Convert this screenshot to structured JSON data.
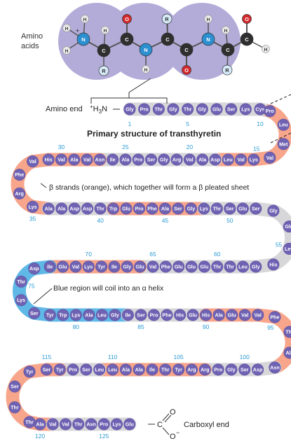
{
  "amino_acids_label": [
    "Amino",
    "acids"
  ],
  "amino_end_label": "Amino end",
  "amino_end_group": "+H3N",
  "title": "Primary structure of transthyretin",
  "beta_note": "β strands (orange), which together will form a β pleated sheet",
  "helix_note": "Blue region will coil into an α helix",
  "carboxyl_end_label": "Carboxyl end",
  "carboxyl_group": {
    "carbon": "C",
    "oxygen_top": "O",
    "oxygen_bottom": "O"
  },
  "molecule_atoms": {
    "backbone": [
      "N",
      "C",
      "C",
      "N",
      "C",
      "C",
      "N",
      "C",
      "C"
    ],
    "oxygens": [
      "O",
      "O",
      "O"
    ],
    "hydrogens": [
      "H",
      "H",
      "H",
      "H",
      "H",
      "H",
      "H",
      "H",
      "H"
    ],
    "side_chains": [
      "R",
      "R",
      "R"
    ],
    "charge": "+"
  },
  "colors": {
    "bead": "#6f62b3",
    "bead_edge": "#5a4fa0",
    "beta_strand": "#f7a58b",
    "helix": "#5fb8e6",
    "chain_gray": "#d7d7d9",
    "number": "#2b9bd3",
    "molecule_bg": "#b3acd9",
    "carbon": "#2f2f2f",
    "nitrogen": "#2c8fd0",
    "oxygen": "#d3282b",
    "hydrogen": "#ebebeb",
    "side_chain": "#d6eaf8"
  },
  "rows": [
    {
      "numbers": [
        1,
        5,
        10
      ],
      "residues": [
        {
          "n": 1,
          "aa": "Gly",
          "band": "gray"
        },
        {
          "n": 2,
          "aa": "Pro",
          "band": "gray"
        },
        {
          "n": 3,
          "aa": "Thr",
          "band": "gray"
        },
        {
          "n": 4,
          "aa": "Gly",
          "band": "gray"
        },
        {
          "n": 5,
          "aa": "Thr",
          "band": "gray"
        },
        {
          "n": 6,
          "aa": "Gly",
          "band": "gray"
        },
        {
          "n": 7,
          "aa": "Glu",
          "band": "gray"
        },
        {
          "n": 8,
          "aa": "Ser",
          "band": "gray"
        },
        {
          "n": 9,
          "aa": "Lys",
          "band": "gray"
        },
        {
          "n": 10,
          "aa": "Cys",
          "band": "gray"
        }
      ]
    },
    {
      "numbers": [
        15
      ],
      "residues": [
        {
          "n": 11,
          "aa": "Pro",
          "band": "gray"
        },
        {
          "n": 12,
          "aa": "Leu",
          "band": "beta"
        },
        {
          "n": 13,
          "aa": "Met",
          "band": "beta"
        },
        {
          "n": 14,
          "aa": "Val",
          "band": "beta"
        }
      ]
    },
    {
      "numbers": [
        20,
        25,
        30
      ],
      "residues": [
        {
          "n": 15,
          "aa": "Lys",
          "band": "beta"
        },
        {
          "n": 16,
          "aa": "Val",
          "band": "beta"
        },
        {
          "n": 17,
          "aa": "Leu",
          "band": "beta"
        },
        {
          "n": 18,
          "aa": "Asp",
          "band": "beta"
        },
        {
          "n": 19,
          "aa": "Ala",
          "band": "gray"
        },
        {
          "n": 20,
          "aa": "Val",
          "band": "gray"
        },
        {
          "n": 21,
          "aa": "Arg",
          "band": "gray"
        },
        {
          "n": 22,
          "aa": "Gly",
          "band": "gray"
        },
        {
          "n": 23,
          "aa": "Ser",
          "band": "gray"
        },
        {
          "n": 24,
          "aa": "Pro",
          "band": "gray"
        },
        {
          "n": 25,
          "aa": "Ala",
          "band": "gray"
        },
        {
          "n": 26,
          "aa": "Ile",
          "band": "gray"
        },
        {
          "n": 27,
          "aa": "Asn",
          "band": "gray"
        },
        {
          "n": 28,
          "aa": "Val",
          "band": "beta"
        },
        {
          "n": 29,
          "aa": "Ala",
          "band": "beta"
        },
        {
          "n": 30,
          "aa": "Val",
          "band": "beta"
        },
        {
          "n": 31,
          "aa": "His",
          "band": "beta"
        }
      ]
    },
    {
      "numbers": [],
      "residues": [
        {
          "n": 32,
          "aa": "Val",
          "band": "beta"
        },
        {
          "n": 33,
          "aa": "Phe",
          "band": "beta"
        },
        {
          "n": 34,
          "aa": "Arg",
          "band": "beta"
        },
        {
          "n": 35,
          "aa": "Lys",
          "band": "beta"
        }
      ]
    },
    {
      "numbers": [
        35,
        40,
        45,
        50
      ],
      "residues": [
        {
          "n": 36,
          "aa": "Ala",
          "band": "beta"
        },
        {
          "n": 37,
          "aa": "Ala",
          "band": "gray"
        },
        {
          "n": 38,
          "aa": "Asp",
          "band": "gray"
        },
        {
          "n": 39,
          "aa": "Asp",
          "band": "gray"
        },
        {
          "n": 40,
          "aa": "Thr",
          "band": "gray"
        },
        {
          "n": 41,
          "aa": "Trp",
          "band": "gray"
        },
        {
          "n": 42,
          "aa": "Glu",
          "band": "beta"
        },
        {
          "n": 43,
          "aa": "Pro",
          "band": "beta"
        },
        {
          "n": 44,
          "aa": "Phe",
          "band": "beta"
        },
        {
          "n": 45,
          "aa": "Ala",
          "band": "beta"
        },
        {
          "n": 46,
          "aa": "Ser",
          "band": "beta"
        },
        {
          "n": 47,
          "aa": "Gly",
          "band": "beta"
        },
        {
          "n": 48,
          "aa": "Lys",
          "band": "beta"
        },
        {
          "n": 49,
          "aa": "Thr",
          "band": "gray"
        },
        {
          "n": 50,
          "aa": "Ser",
          "band": "gray"
        },
        {
          "n": 51,
          "aa": "Glu",
          "band": "gray"
        },
        {
          "n": 52,
          "aa": "Ser",
          "band": "gray"
        }
      ]
    },
    {
      "numbers": [
        55
      ],
      "residues": [
        {
          "n": 53,
          "aa": "Gly",
          "band": "gray"
        },
        {
          "n": 54,
          "aa": "Glu",
          "band": "gray"
        },
        {
          "n": 55,
          "aa": "Leu",
          "band": "gray"
        },
        {
          "n": 56,
          "aa": "His",
          "band": "gray"
        }
      ]
    },
    {
      "numbers": [
        60,
        65,
        70
      ],
      "residues": [
        {
          "n": 57,
          "aa": "Gly",
          "band": "gray"
        },
        {
          "n": 58,
          "aa": "Leu",
          "band": "gray"
        },
        {
          "n": 59,
          "aa": "Thr",
          "band": "gray"
        },
        {
          "n": 60,
          "aa": "Thr",
          "band": "gray"
        },
        {
          "n": 61,
          "aa": "Glu",
          "band": "gray"
        },
        {
          "n": 62,
          "aa": "Glu",
          "band": "gray"
        },
        {
          "n": 63,
          "aa": "Glu",
          "band": "gray"
        },
        {
          "n": 64,
          "aa": "Phe",
          "band": "gray"
        },
        {
          "n": 65,
          "aa": "Val",
          "band": "gray"
        },
        {
          "n": 66,
          "aa": "Glu",
          "band": "gray"
        },
        {
          "n": 67,
          "aa": "Gly",
          "band": "beta"
        },
        {
          "n": 68,
          "aa": "Ile",
          "band": "beta"
        },
        {
          "n": 69,
          "aa": "Tyr",
          "band": "beta"
        },
        {
          "n": 70,
          "aa": "Lys",
          "band": "beta"
        },
        {
          "n": 71,
          "aa": "Val",
          "band": "beta"
        },
        {
          "n": 72,
          "aa": "Glu",
          "band": "beta"
        },
        {
          "n": 73,
          "aa": "Ile",
          "band": "beta"
        }
      ]
    },
    {
      "numbers": [
        75
      ],
      "residues": [
        {
          "n": 74,
          "aa": "Asp",
          "band": "helix"
        },
        {
          "n": 75,
          "aa": "Thr",
          "band": "helix"
        },
        {
          "n": 76,
          "aa": "Lys",
          "band": "helix"
        },
        {
          "n": 77,
          "aa": "Ser",
          "band": "helix"
        }
      ]
    },
    {
      "numbers": [
        80,
        85,
        90
      ],
      "residues": [
        {
          "n": 78,
          "aa": "Tyr",
          "band": "helix"
        },
        {
          "n": 79,
          "aa": "Trp",
          "band": "helix"
        },
        {
          "n": 80,
          "aa": "Lys",
          "band": "helix"
        },
        {
          "n": 81,
          "aa": "Ala",
          "band": "helix"
        },
        {
          "n": 82,
          "aa": "Leu",
          "band": "helix"
        },
        {
          "n": 83,
          "aa": "Gly",
          "band": "helix"
        },
        {
          "n": 84,
          "aa": "Ile",
          "band": "helix"
        },
        {
          "n": 85,
          "aa": "Ser",
          "band": "gray"
        },
        {
          "n": 86,
          "aa": "Pro",
          "band": "gray"
        },
        {
          "n": 87,
          "aa": "Phe",
          "band": "gray"
        },
        {
          "n": 88,
          "aa": "His",
          "band": "gray"
        },
        {
          "n": 89,
          "aa": "Glu",
          "band": "gray"
        },
        {
          "n": 90,
          "aa": "His",
          "band": "gray"
        },
        {
          "n": 91,
          "aa": "Ala",
          "band": "beta"
        },
        {
          "n": 92,
          "aa": "Glu",
          "band": "beta"
        },
        {
          "n": 93,
          "aa": "Val",
          "band": "beta"
        },
        {
          "n": 94,
          "aa": "Val",
          "band": "beta"
        }
      ]
    },
    {
      "numbers": [
        95
      ],
      "residues": [
        {
          "n": 95,
          "aa": "Phe",
          "band": "beta"
        },
        {
          "n": 96,
          "aa": "Thr",
          "band": "beta"
        },
        {
          "n": 97,
          "aa": "Ala",
          "band": "beta"
        },
        {
          "n": 98,
          "aa": "Asn",
          "band": "beta"
        }
      ]
    },
    {
      "numbers": [
        100,
        105,
        110,
        115
      ],
      "residues": [
        {
          "n": 99,
          "aa": "Asp",
          "band": "gray"
        },
        {
          "n": 100,
          "aa": "Ser",
          "band": "gray"
        },
        {
          "n": 101,
          "aa": "Gly",
          "band": "gray"
        },
        {
          "n": 102,
          "aa": "Pro",
          "band": "gray"
        },
        {
          "n": 103,
          "aa": "Arg",
          "band": "gray"
        },
        {
          "n": 104,
          "aa": "Arg",
          "band": "beta"
        },
        {
          "n": 105,
          "aa": "Tyr",
          "band": "beta"
        },
        {
          "n": 106,
          "aa": "Thr",
          "band": "beta"
        },
        {
          "n": 107,
          "aa": "Ile",
          "band": "beta"
        },
        {
          "n": 108,
          "aa": "Ala",
          "band": "beta"
        },
        {
          "n": 109,
          "aa": "Ala",
          "band": "beta"
        },
        {
          "n": 110,
          "aa": "Leu",
          "band": "beta"
        },
        {
          "n": 111,
          "aa": "Leu",
          "band": "beta"
        },
        {
          "n": 112,
          "aa": "Ser",
          "band": "gray"
        },
        {
          "n": 113,
          "aa": "Pro",
          "band": "gray"
        },
        {
          "n": 114,
          "aa": "Tyr",
          "band": "gray"
        },
        {
          "n": 115,
          "aa": "Ser",
          "band": "beta"
        }
      ]
    },
    {
      "numbers": [],
      "residues": [
        {
          "n": 116,
          "aa": "Tyr",
          "band": "beta"
        },
        {
          "n": 117,
          "aa": "Ser",
          "band": "beta"
        },
        {
          "n": 118,
          "aa": "Thr",
          "band": "beta"
        },
        {
          "n": 119,
          "aa": "Thr",
          "band": "beta"
        }
      ]
    },
    {
      "numbers": [
        120,
        125
      ],
      "residues": [
        {
          "n": 120,
          "aa": "Ala",
          "band": "beta"
        },
        {
          "n": 121,
          "aa": "Val",
          "band": "beta"
        },
        {
          "n": 122,
          "aa": "Val",
          "band": "gray"
        },
        {
          "n": 123,
          "aa": "Thr",
          "band": "gray"
        },
        {
          "n": 124,
          "aa": "Asn",
          "band": "gray"
        },
        {
          "n": 125,
          "aa": "Pro",
          "band": "gray"
        },
        {
          "n": 126,
          "aa": "Lys",
          "band": "gray"
        },
        {
          "n": 127,
          "aa": "Glu",
          "band": "gray"
        }
      ]
    }
  ]
}
